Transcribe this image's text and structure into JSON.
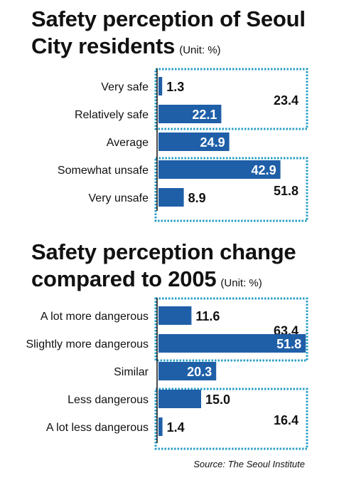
{
  "colors": {
    "bar": "#1f5fa8",
    "group_box": "#2a9fc7",
    "text": "#111111",
    "axis": "#111111"
  },
  "chart_data": [
    {
      "type": "bar",
      "orientation": "horizontal",
      "title": "Safety perception of Seoul City residents",
      "unit": "(Unit: %)",
      "categories": [
        "Very safe",
        "Relatively safe",
        "Average",
        "Somewhat unsafe",
        "Very unsafe"
      ],
      "values": [
        1.3,
        22.1,
        24.9,
        42.9,
        8.9
      ],
      "value_labels": [
        "1.3",
        "22.1",
        "24.9",
        "42.9",
        "8.9"
      ],
      "groups": [
        {
          "members": [
            0,
            1
          ],
          "total": "23.4"
        },
        {
          "members": [
            3,
            4
          ],
          "total": "51.8"
        }
      ]
    },
    {
      "type": "bar",
      "orientation": "horizontal",
      "title": "Safety perception change compared to 2005",
      "unit": "(Unit: %)",
      "categories": [
        "A lot more dangerous",
        "Slightly more dangerous",
        "Similar",
        "Less dangerous",
        "A lot less dangerous"
      ],
      "values": [
        11.6,
        51.8,
        20.3,
        15.0,
        1.4
      ],
      "value_labels": [
        "11.6",
        "51.8",
        "20.3",
        "15.0",
        "1.4"
      ],
      "groups": [
        {
          "members": [
            0,
            1
          ],
          "total": "63.4"
        },
        {
          "members": [
            3,
            4
          ],
          "total": "16.4"
        }
      ]
    }
  ],
  "source": "Source: The Seoul Institute"
}
